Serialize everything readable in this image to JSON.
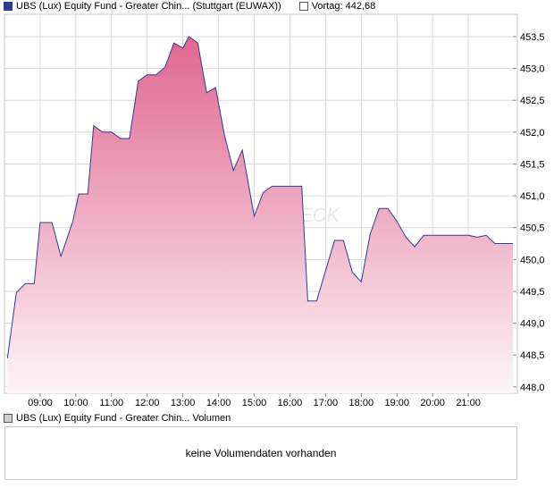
{
  "legend": {
    "series_label": "UBS (Lux) Equity Fund - Greater Chin... (Stuttgart (EUWAX))",
    "prev_label": "Vortag: 442,68",
    "volume_label": "UBS (Lux) Equity Fund - Greater Chin... Volumen"
  },
  "volume": {
    "message": "keine Volumendaten vorhanden"
  },
  "watermark": "ECK",
  "colors": {
    "line": "#2b3d9b",
    "fill_top": "#e06690",
    "fill_bottom": "#fdf5f8",
    "grid": "#d8d8d8"
  },
  "chart_data": {
    "type": "area",
    "title": "",
    "xlabel": "",
    "ylabel": "",
    "x_ticks": [
      "09:00",
      "10:00",
      "11:00",
      "12:00",
      "13:00",
      "14:00",
      "15:00",
      "16:00",
      "17:00",
      "18:00",
      "19:00",
      "20:00",
      "21:00"
    ],
    "y_ticks": [
      "448,0",
      "448,5",
      "449,0",
      "449,5",
      "450,0",
      "450,5",
      "451,0",
      "451,5",
      "452,0",
      "452,5",
      "453,0",
      "453,5"
    ],
    "xlim": [
      "08:00",
      "22:15"
    ],
    "ylim": [
      447.9,
      453.85
    ],
    "grid": true,
    "legend_position": "top-left",
    "series": [
      {
        "name": "UBS (Lux) Equity Fund - Greater Chin... (Stuttgart (EUWAX))",
        "points": [
          [
            "08:05",
            448.45
          ],
          [
            "08:20",
            449.48
          ],
          [
            "08:35",
            449.62
          ],
          [
            "08:50",
            449.62
          ],
          [
            "09:00",
            450.58
          ],
          [
            "09:20",
            450.58
          ],
          [
            "09:35",
            450.05
          ],
          [
            "09:55",
            450.6
          ],
          [
            "10:05",
            451.03
          ],
          [
            "10:20",
            451.03
          ],
          [
            "10:30",
            452.1
          ],
          [
            "10:45",
            452.0
          ],
          [
            "11:00",
            452.0
          ],
          [
            "11:15",
            451.9
          ],
          [
            "11:30",
            451.9
          ],
          [
            "11:45",
            452.8
          ],
          [
            "12:00",
            452.9
          ],
          [
            "12:15",
            452.9
          ],
          [
            "12:30",
            453.02
          ],
          [
            "12:45",
            453.4
          ],
          [
            "13:00",
            453.32
          ],
          [
            "13:10",
            453.5
          ],
          [
            "13:25",
            453.4
          ],
          [
            "13:40",
            452.62
          ],
          [
            "13:55",
            452.7
          ],
          [
            "14:10",
            451.95
          ],
          [
            "14:25",
            451.4
          ],
          [
            "14:40",
            451.72
          ],
          [
            "15:00",
            450.68
          ],
          [
            "15:15",
            451.05
          ],
          [
            "15:30",
            451.15
          ],
          [
            "16:00",
            451.15
          ],
          [
            "16:20",
            451.15
          ],
          [
            "16:30",
            449.35
          ],
          [
            "16:45",
            449.35
          ],
          [
            "17:15",
            450.3
          ],
          [
            "17:30",
            450.3
          ],
          [
            "17:45",
            449.8
          ],
          [
            "18:00",
            449.65
          ],
          [
            "18:15",
            450.4
          ],
          [
            "18:30",
            450.8
          ],
          [
            "18:45",
            450.8
          ],
          [
            "19:00",
            450.6
          ],
          [
            "19:15",
            450.35
          ],
          [
            "19:30",
            450.2
          ],
          [
            "19:45",
            450.38
          ],
          [
            "20:00",
            450.38
          ],
          [
            "20:30",
            450.38
          ],
          [
            "21:00",
            450.38
          ],
          [
            "21:15",
            450.35
          ],
          [
            "21:30",
            450.38
          ],
          [
            "21:45",
            450.25
          ],
          [
            "22:15",
            450.25
          ]
        ]
      }
    ]
  }
}
